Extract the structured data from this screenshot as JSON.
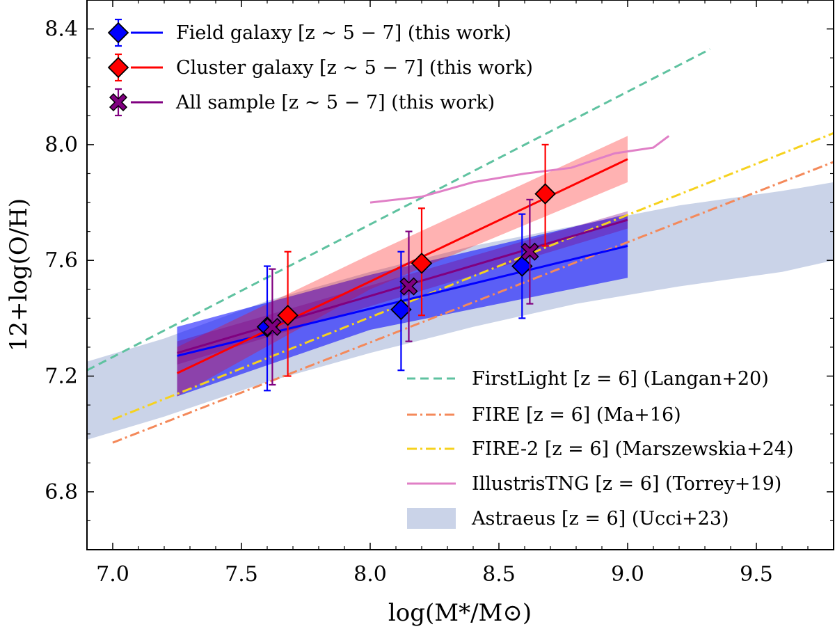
{
  "chart_data": {
    "type": "scatter",
    "xlabel": "log(M*/M⊙)",
    "ylabel": "12+log(O/H)",
    "xlim": [
      6.9,
      9.8
    ],
    "ylim": [
      6.6,
      8.5
    ],
    "xticks": [
      "7.0",
      "7.5",
      "8.0",
      "8.5",
      "9.0",
      "9.5"
    ],
    "yticks": [
      "6.8",
      "7.2",
      "7.6",
      "8.0",
      "8.4"
    ],
    "observed": [
      {
        "name": "Field galaxy [z ∼ 5 − 7] (this work)",
        "color": "#0000ff",
        "marker": "diamond",
        "points": [
          {
            "x": 7.6,
            "y": 7.37,
            "err_low": 0.22,
            "err_high": 0.21
          },
          {
            "x": 8.12,
            "y": 7.43,
            "err_low": 0.21,
            "err_high": 0.2
          },
          {
            "x": 8.59,
            "y": 7.58,
            "err_low": 0.18,
            "err_high": 0.18
          }
        ],
        "fit": {
          "x": [
            7.25,
            9.0
          ],
          "y": [
            7.27,
            7.65
          ]
        },
        "band": {
          "x": [
            7.25,
            8.0,
            9.0
          ],
          "low": [
            7.13,
            7.36,
            7.54
          ],
          "high": [
            7.37,
            7.55,
            7.76
          ]
        }
      },
      {
        "name": "Cluster galaxy [z ∼ 5 − 7] (this work)",
        "color": "#ff0000",
        "marker": "diamond",
        "points": [
          {
            "x": 7.68,
            "y": 7.41,
            "err_low": 0.21,
            "err_high": 0.22
          },
          {
            "x": 8.2,
            "y": 7.59,
            "err_low": 0.18,
            "err_high": 0.19
          },
          {
            "x": 8.68,
            "y": 7.83,
            "err_low": 0.18,
            "err_high": 0.17
          }
        ],
        "fit": {
          "x": [
            7.25,
            9.0
          ],
          "y": [
            7.21,
            7.95
          ]
        },
        "band": {
          "x": [
            7.25,
            8.0,
            9.0
          ],
          "low": [
            7.13,
            7.5,
            7.87
          ],
          "high": [
            7.3,
            7.62,
            8.03
          ]
        }
      },
      {
        "name": "All sample [z ∼ 5 − 7] (this work)",
        "color": "#800080",
        "marker": "x",
        "points": [
          {
            "x": 7.62,
            "y": 7.37,
            "err_low": 0.2,
            "err_high": 0.2
          },
          {
            "x": 8.15,
            "y": 7.51,
            "err_low": 0.19,
            "err_high": 0.19
          },
          {
            "x": 8.62,
            "y": 7.63,
            "err_low": 0.18,
            "err_high": 0.18
          }
        ],
        "fit": {
          "x": [
            7.25,
            9.0
          ],
          "y": [
            7.28,
            7.74
          ]
        },
        "band": {
          "x": [
            7.25,
            9.0
          ],
          "low": [
            7.24,
            7.71
          ],
          "high": [
            7.32,
            7.77
          ]
        }
      }
    ],
    "models": [
      {
        "name": "FirstLight [z = 6] (Langan+20)",
        "color": "#5fc2a0",
        "style": "dashed",
        "x": [
          6.9,
          9.32
        ],
        "y": [
          7.22,
          8.33
        ]
      },
      {
        "name": "FIRE [z = 6] (Ma+16)",
        "color": "#f4895a",
        "style": "dashdot",
        "x": [
          7.0,
          9.8
        ],
        "y": [
          6.97,
          7.94
        ]
      },
      {
        "name": "FIRE-2 [z = 6] (Marszewskia+24)",
        "color": "#f6d21e",
        "style": "dashdot",
        "x": [
          7.0,
          9.8
        ],
        "y": [
          7.05,
          8.04
        ]
      },
      {
        "name": "IllustrisTNG [z = 6] (Torrey+19)",
        "color": "#e07fc6",
        "style": "solid",
        "x": [
          8.0,
          8.2,
          8.4,
          8.6,
          8.78,
          8.95,
          9.1,
          9.16
        ],
        "y": [
          7.8,
          7.82,
          7.87,
          7.9,
          7.92,
          7.97,
          7.99,
          8.03
        ]
      }
    ],
    "band_model": {
      "name": "Astraeus [z = 6] (Ucci+23)",
      "color": "#b4c0de",
      "x": [
        6.9,
        7.2,
        7.6,
        8.0,
        8.4,
        8.8,
        9.2,
        9.6,
        9.8
      ],
      "low": [
        6.98,
        7.06,
        7.18,
        7.28,
        7.37,
        7.45,
        7.51,
        7.56,
        7.6
      ],
      "high": [
        7.25,
        7.33,
        7.46,
        7.56,
        7.65,
        7.72,
        7.79,
        7.84,
        7.87
      ]
    }
  }
}
